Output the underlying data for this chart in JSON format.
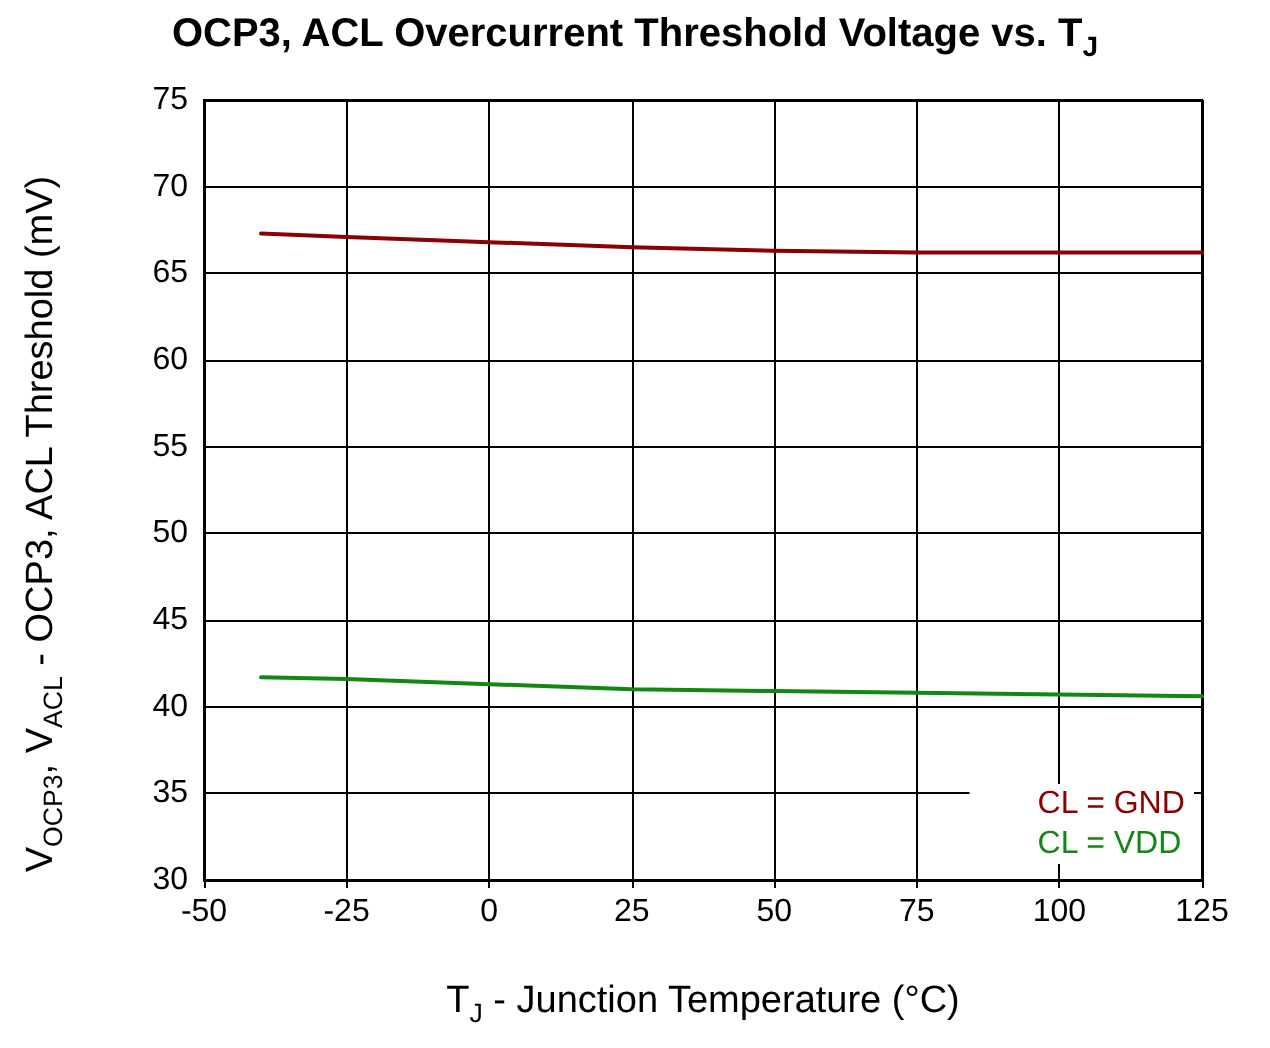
{
  "chart_data": {
    "type": "line",
    "title": "OCP3, ACL Overcurrent Threshold Voltage vs. T$_{J}$",
    "xlabel": "T$_{J}$ - Junction Temperature (°C)",
    "ylabel": "V$_{OCP3}$, V$_{ACL}$ - OCP3, ACL Threshold (mV)",
    "x": [
      -40,
      -25,
      0,
      25,
      50,
      75,
      100,
      125
    ],
    "series": [
      {
        "name": "CL = GND",
        "color": "#8b0000",
        "values": [
          67.3,
          67.1,
          66.8,
          66.5,
          66.3,
          66.2,
          66.2,
          66.2
        ]
      },
      {
        "name": "CL = VDD",
        "color": "#118811",
        "values": [
          41.7,
          41.6,
          41.3,
          41.0,
          40.9,
          40.8,
          40.7,
          40.6
        ]
      }
    ],
    "xlim": [
      -50,
      125
    ],
    "xticks": [
      -50,
      -25,
      0,
      25,
      50,
      75,
      100,
      125
    ],
    "ylim": [
      30,
      75
    ],
    "yticks": [
      30,
      35,
      40,
      45,
      50,
      55,
      60,
      65,
      70,
      75
    ],
    "grid": true,
    "legend": "bottom right",
    "marker": "none",
    "line_style": "solid"
  }
}
